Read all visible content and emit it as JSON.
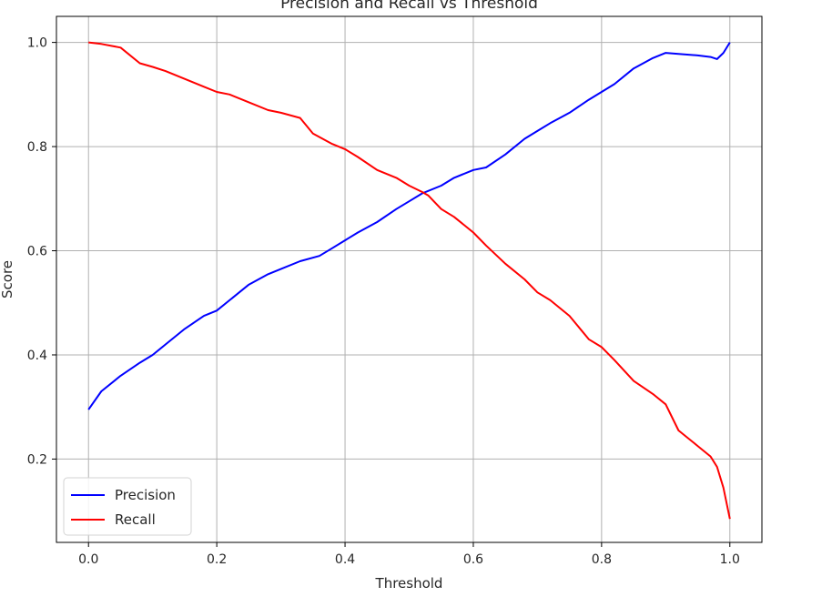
{
  "chart_data": {
    "type": "line",
    "title": "Precision and Recall vs Threshold",
    "xlabel": "Threshold",
    "ylabel": "Score",
    "xlim": [
      -0.05,
      1.05
    ],
    "ylim": [
      0.04,
      1.05
    ],
    "xticks": [
      0.0,
      0.2,
      0.4,
      0.6,
      0.8,
      1.0
    ],
    "xtick_labels": [
      "0.0",
      "0.2",
      "0.4",
      "0.6",
      "0.8",
      "1.0"
    ],
    "yticks": [
      0.2,
      0.4,
      0.6,
      0.8,
      1.0
    ],
    "ytick_labels": [
      "0.2",
      "0.4",
      "0.6",
      "0.8",
      "1.0"
    ],
    "grid": true,
    "legend_position": "lower-left",
    "series": [
      {
        "name": "Precision",
        "color": "#0000ff",
        "x": [
          0.0,
          0.02,
          0.05,
          0.08,
          0.1,
          0.12,
          0.15,
          0.18,
          0.2,
          0.22,
          0.25,
          0.28,
          0.3,
          0.33,
          0.36,
          0.38,
          0.4,
          0.42,
          0.45,
          0.48,
          0.5,
          0.52,
          0.55,
          0.57,
          0.6,
          0.62,
          0.65,
          0.68,
          0.7,
          0.72,
          0.75,
          0.78,
          0.8,
          0.82,
          0.85,
          0.88,
          0.9,
          0.92,
          0.95,
          0.97,
          0.98,
          0.99,
          1.0
        ],
        "y": [
          0.295,
          0.33,
          0.36,
          0.385,
          0.4,
          0.42,
          0.45,
          0.475,
          0.485,
          0.505,
          0.535,
          0.555,
          0.565,
          0.58,
          0.59,
          0.605,
          0.62,
          0.635,
          0.655,
          0.68,
          0.695,
          0.71,
          0.725,
          0.74,
          0.755,
          0.76,
          0.785,
          0.815,
          0.83,
          0.845,
          0.865,
          0.89,
          0.905,
          0.92,
          0.95,
          0.97,
          0.98,
          0.978,
          0.975,
          0.972,
          0.968,
          0.98,
          1.0
        ]
      },
      {
        "name": "Recall",
        "color": "#ff0000",
        "x": [
          0.0,
          0.02,
          0.05,
          0.08,
          0.1,
          0.12,
          0.15,
          0.18,
          0.2,
          0.22,
          0.25,
          0.28,
          0.3,
          0.33,
          0.35,
          0.38,
          0.4,
          0.42,
          0.45,
          0.48,
          0.5,
          0.52,
          0.53,
          0.55,
          0.57,
          0.6,
          0.62,
          0.65,
          0.68,
          0.7,
          0.72,
          0.75,
          0.78,
          0.8,
          0.82,
          0.85,
          0.88,
          0.9,
          0.92,
          0.95,
          0.97,
          0.98,
          0.99,
          1.0
        ],
        "y": [
          1.0,
          0.997,
          0.99,
          0.96,
          0.953,
          0.945,
          0.93,
          0.915,
          0.905,
          0.9,
          0.885,
          0.87,
          0.865,
          0.855,
          0.825,
          0.805,
          0.795,
          0.78,
          0.755,
          0.74,
          0.725,
          0.713,
          0.706,
          0.68,
          0.665,
          0.635,
          0.61,
          0.575,
          0.545,
          0.52,
          0.505,
          0.475,
          0.43,
          0.415,
          0.39,
          0.35,
          0.325,
          0.305,
          0.255,
          0.225,
          0.205,
          0.185,
          0.145,
          0.085
        ]
      }
    ]
  }
}
